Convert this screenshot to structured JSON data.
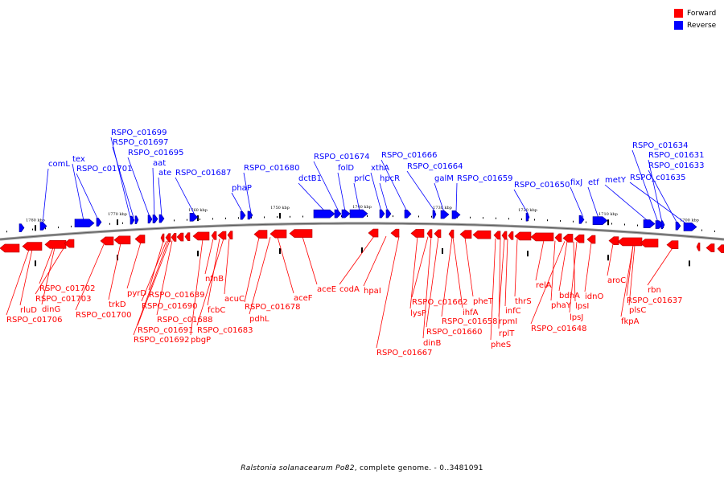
{
  "legend": {
    "forward_label": "Forward",
    "reverse_label": "Reverse",
    "forward_color": "#ff0000",
    "reverse_color": "#0000ff"
  },
  "caption": {
    "organism": "Ralstonia solanacearum Po82",
    "suffix": ", complete genome. - 0..3481091"
  },
  "ticks": [
    "1780 kbp",
    "1770 kbp",
    "1760 kbp",
    "1750 kbp",
    "1740 kbp",
    "1730 kbp",
    "1720 kbp",
    "1710 kbp",
    "1700 kbp"
  ],
  "reverse_labels": [
    "RSPO_c01699",
    "RSPO_c01697",
    "RSPO_c01695",
    "aat",
    "ate",
    "RSPO_c01687",
    "comL",
    "tex",
    "RSPO_c01701",
    "phaP",
    "RSPO_c01680",
    "dctB1",
    "RSPO_c01674",
    "folD",
    "prlC",
    "xthA",
    "hpcR",
    "RSPO_c01666",
    "RSPO_c01664",
    "galM",
    "RSPO_c01659",
    "RSPO_c01650",
    "fixJ",
    "etf",
    "metY",
    "RSPO_c01634",
    "RSPO_c01631",
    "RSPO_c01633",
    "RSPO_c01635"
  ],
  "forward_labels": [
    "RSPO_c01702",
    "RSPO_c01703",
    "rluD",
    "dinG",
    "RSPO_c01706",
    "RSPO_c01700",
    "trkD",
    "pyrD",
    "RSPO_c01689",
    "RSPO_c01690",
    "RSPO_c01688",
    "RSPO_c01691",
    "RSPO_c01692",
    "nfnB",
    "fcbC",
    "acuC",
    "RSPO_c01683",
    "pbgP",
    "RSPO_c01678",
    "pdhL",
    "aceF",
    "aceE",
    "codA",
    "hpaI",
    "RSPO_c01667",
    "lysP",
    "RSPO_c01662",
    "dinB",
    "RSPO_c01660",
    "RSPO_c01658",
    "ihfA",
    "pheT",
    "pheS",
    "rplT",
    "rpmI",
    "infC",
    "thrS",
    "relA",
    "phaY",
    "RSPO_c01648",
    "bdhA",
    "lpsI",
    "lpsJ",
    "idnO",
    "aroC",
    "RSPO_c01637",
    "plsC",
    "fkpA",
    "rbn"
  ]
}
